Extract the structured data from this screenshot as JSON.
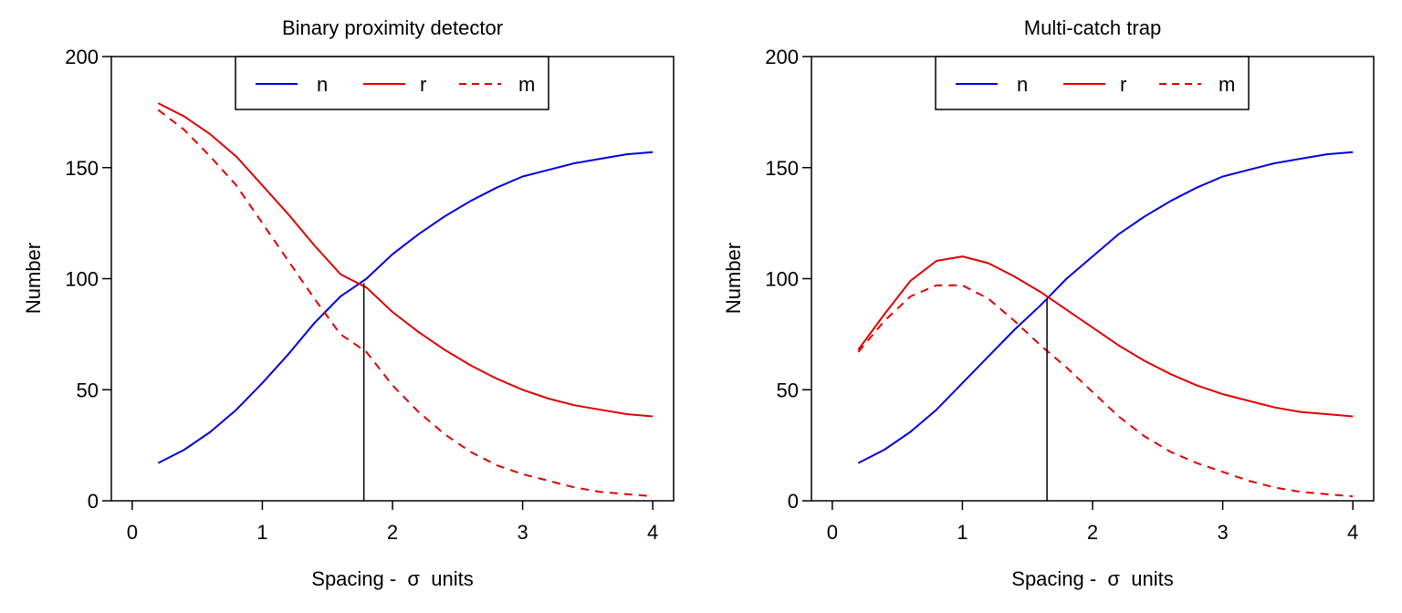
{
  "chart_data": [
    {
      "type": "line",
      "title": "Binary proximity detector",
      "xlabel": "Spacing -  σ  units",
      "ylabel": "Number",
      "xlim": [
        -0.16,
        4.16
      ],
      "ylim": [
        0,
        200
      ],
      "xticks": [
        "0",
        "1",
        "2",
        "3",
        "4"
      ],
      "yticks": [
        "0",
        "50",
        "100",
        "150",
        "200"
      ],
      "legend": {
        "position": "top-center",
        "entries": [
          "n",
          "r",
          "m"
        ]
      },
      "x": [
        0.2,
        0.4,
        0.6,
        0.8,
        1.0,
        1.2,
        1.4,
        1.6,
        1.8,
        2.0,
        2.2,
        2.4,
        2.6,
        2.8,
        3.0,
        3.2,
        3.4,
        3.6,
        3.8,
        4.0
      ],
      "series": [
        {
          "name": "n",
          "color": "#0000dd",
          "dash": "solid",
          "values": [
            17,
            23,
            31,
            41,
            53,
            66,
            80,
            92,
            100,
            111,
            120,
            128,
            135,
            141,
            146,
            149,
            152,
            154,
            156,
            157
          ]
        },
        {
          "name": "r",
          "color": "#dd0000",
          "dash": "solid",
          "values": [
            179,
            173,
            165,
            155,
            142,
            129,
            115,
            102,
            96,
            85,
            76,
            68,
            61,
            55,
            50,
            46,
            43,
            41,
            39,
            38
          ]
        },
        {
          "name": "m",
          "color": "#dd0000",
          "dash": "dashed",
          "values": [
            176,
            167,
            155,
            142,
            125,
            108,
            91,
            75,
            67,
            52,
            40,
            30,
            22,
            16,
            12,
            9,
            6,
            4,
            3,
            2
          ]
        }
      ],
      "vline": {
        "x": 1.78,
        "y": 98,
        "color": "#000000"
      }
    },
    {
      "type": "line",
      "title": "Multi-catch trap",
      "xlabel": "Spacing -  σ  units",
      "ylabel": "Number",
      "xlim": [
        -0.16,
        4.16
      ],
      "ylim": [
        0,
        200
      ],
      "xticks": [
        "0",
        "1",
        "2",
        "3",
        "4"
      ],
      "yticks": [
        "0",
        "50",
        "100",
        "150",
        "200"
      ],
      "legend": {
        "position": "top-center",
        "entries": [
          "n",
          "r",
          "m"
        ]
      },
      "x": [
        0.2,
        0.4,
        0.6,
        0.8,
        1.0,
        1.2,
        1.4,
        1.6,
        1.8,
        2.0,
        2.2,
        2.4,
        2.6,
        2.8,
        3.0,
        3.2,
        3.4,
        3.6,
        3.8,
        4.0
      ],
      "series": [
        {
          "name": "n",
          "color": "#0000dd",
          "dash": "solid",
          "values": [
            17,
            23,
            31,
            41,
            53,
            65,
            77,
            88,
            100,
            110,
            120,
            128,
            135,
            141,
            146,
            149,
            152,
            154,
            156,
            157
          ]
        },
        {
          "name": "r",
          "color": "#dd0000",
          "dash": "solid",
          "values": [
            68,
            84,
            99,
            108,
            110,
            107,
            101,
            94,
            86,
            78,
            70,
            63,
            57,
            52,
            48,
            45,
            42,
            40,
            39,
            38
          ]
        },
        {
          "name": "m",
          "color": "#dd0000",
          "dash": "dashed",
          "values": [
            67,
            81,
            92,
            97,
            97,
            91,
            81,
            70,
            60,
            49,
            38,
            29,
            22,
            17,
            13,
            9,
            6,
            4,
            3,
            2
          ]
        }
      ],
      "vline": {
        "x": 1.65,
        "y": 91,
        "color": "#000000"
      }
    }
  ]
}
